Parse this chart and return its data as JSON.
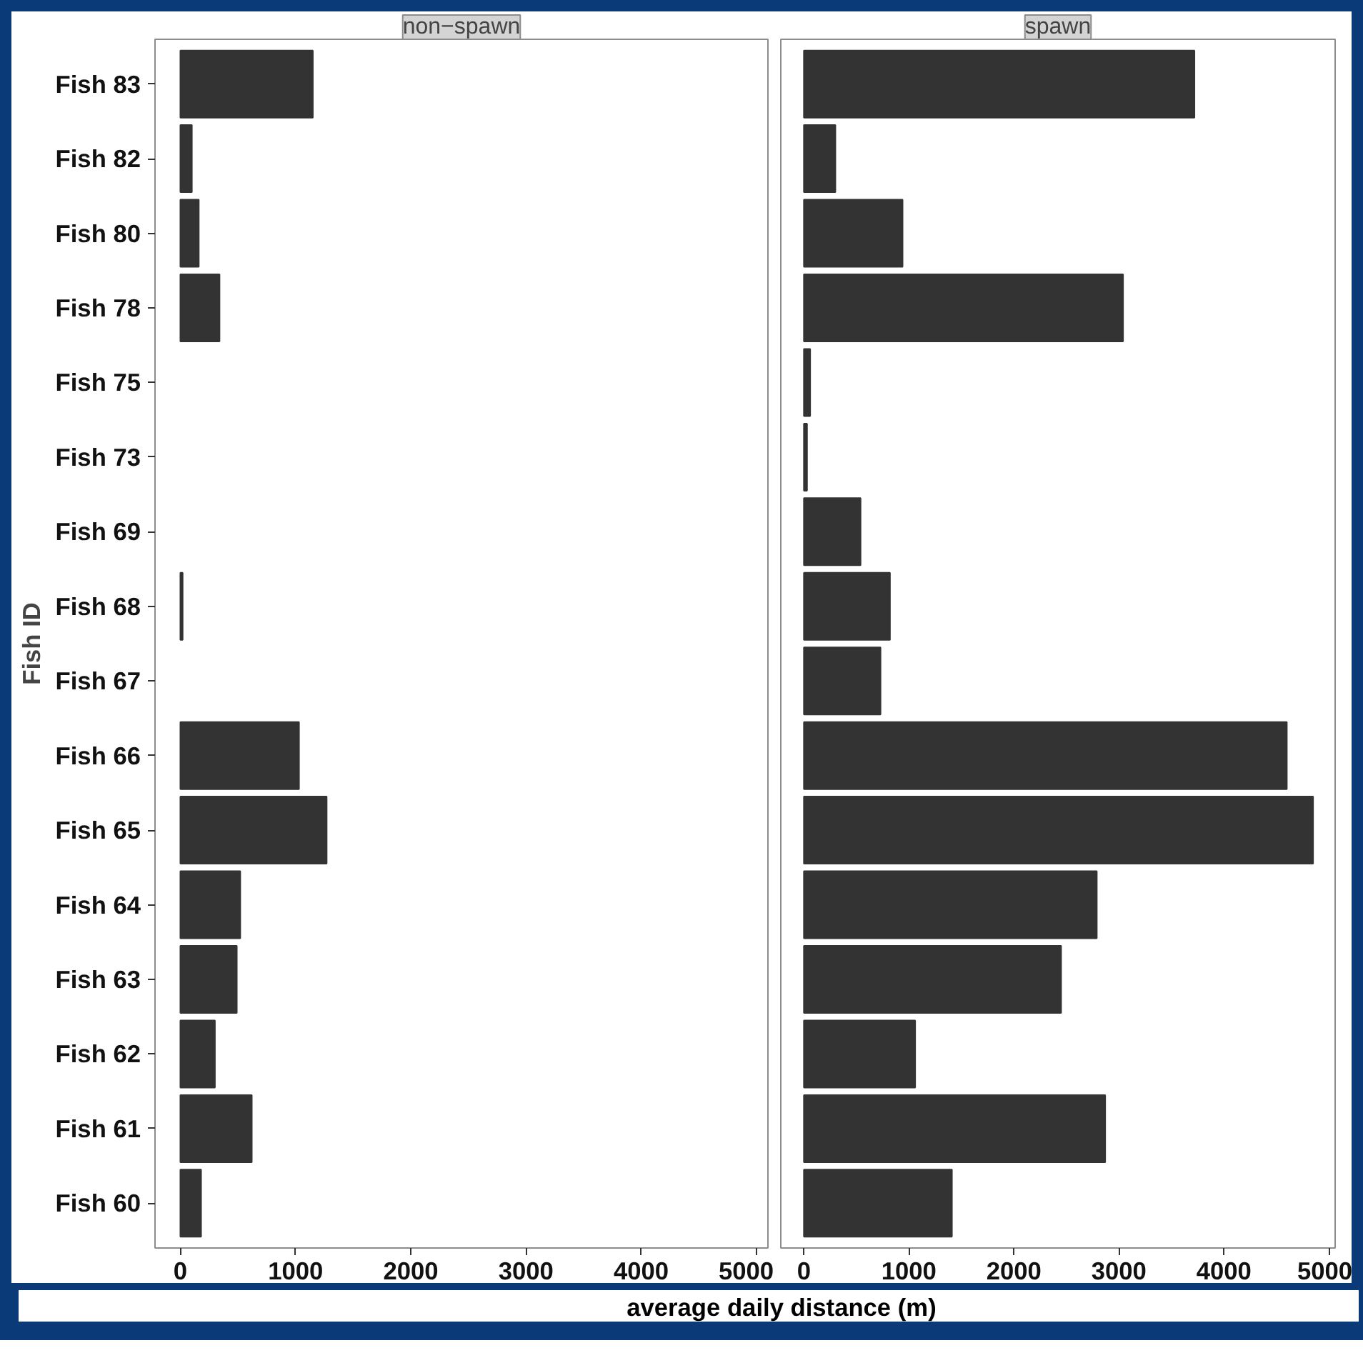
{
  "chart_data": [
    {
      "type": "bar",
      "orientation": "horizontal",
      "title": "non−spawn",
      "ylabel": "Fish ID",
      "xlabel": "average daily distance (m)",
      "categories": [
        "Fish 83",
        "Fish 82",
        "Fish 80",
        "Fish 78",
        "Fish 75",
        "Fish 73",
        "Fish 69",
        "Fish 68",
        "Fish 67",
        "Fish 66",
        "Fish 65",
        "Fish 64",
        "Fish 63",
        "Fish 62",
        "Fish 61",
        "Fish 60"
      ],
      "values": [
        1150,
        100,
        160,
        340,
        null,
        null,
        null,
        20,
        null,
        1030,
        1270,
        520,
        490,
        300,
        620,
        180
      ],
      "color": "#333333",
      "xlim": [
        -220,
        5100
      ],
      "xticks": [
        0,
        1000,
        2000,
        3000,
        4000,
        5000
      ],
      "grid": false
    },
    {
      "type": "bar",
      "orientation": "horizontal",
      "title": "spawn",
      "tick_labels": "x",
      "categories": [
        null,
        null,
        null,
        null,
        null,
        null,
        null,
        null,
        null,
        null,
        null,
        null,
        null,
        null,
        null,
        null
      ],
      "values": [
        3720,
        300,
        940,
        3040,
        60,
        30,
        540,
        820,
        730,
        4600,
        4850,
        2790,
        2450,
        1060,
        2870,
        1410
      ],
      "color": "#333333",
      "xlim": [
        -220,
        5060
      ],
      "xticks": [
        0,
        1000,
        2000,
        3000,
        4000,
        5000
      ],
      "grid": false
    }
  ]
}
